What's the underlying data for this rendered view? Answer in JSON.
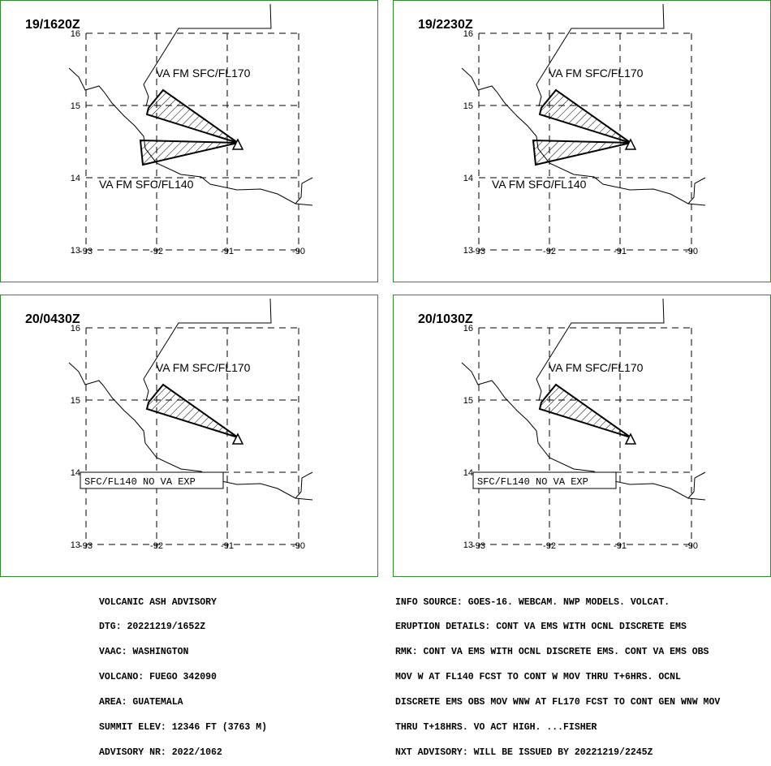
{
  "panels": [
    {
      "time": "19/1620Z",
      "upper_label": "VA FM SFC/FL170",
      "lower_label": "VA FM SFC/FL140",
      "no_va_box": ""
    },
    {
      "time": "19/2230Z",
      "upper_label": "VA FM SFC/FL170",
      "lower_label": "VA FM SFC/FL140",
      "no_va_box": ""
    },
    {
      "time": "20/0430Z",
      "upper_label": "VA FM SFC/FL170",
      "lower_label": "",
      "no_va_box": "SFC/FL140 NO VA EXP"
    },
    {
      "time": "20/1030Z",
      "upper_label": "VA FM SFC/FL170",
      "lower_label": "",
      "no_va_box": "SFC/FL140 NO VA EXP"
    }
  ],
  "lat_ticks": [
    "16",
    "15",
    "14",
    "13"
  ],
  "lon_ticks": [
    "-93",
    "-92",
    "-91",
    "-90"
  ],
  "advisory_left": [
    "VOLCANIC ASH ADVISORY",
    "DTG: 20221219/1652Z",
    "VAAC: WASHINGTON",
    "VOLCANO: FUEGO 342090",
    "AREA: GUATEMALA",
    "SUMMIT ELEV: 12346 FT (3763 M)",
    "ADVISORY NR: 2022/1062"
  ],
  "advisory_right": [
    "INFO SOURCE: GOES-16. WEBCAM. NWP MODELS. VOLCAT.",
    "ERUPTION DETAILS: CONT VA EMS WITH OCNL DISCRETE EMS",
    "RMK: CONT VA EMS WITH OCNL DISCRETE EMS. CONT VA EMS OBS",
    "MOV W AT FL140 FCST TO CONT W MOV THRU T+6HRS. OCNL",
    "DISCRETE EMS OBS MOV WNW AT FL170 FCST TO CONT GEN WNW MOV",
    "THRU T+18HRS. VO ACT HIGH. ...FISHER",
    "NXT ADVISORY: WILL BE ISSUED BY 20221219/2245Z"
  ],
  "colors": {
    "panel_border": "#2e8b2e",
    "ink": "#000000"
  }
}
